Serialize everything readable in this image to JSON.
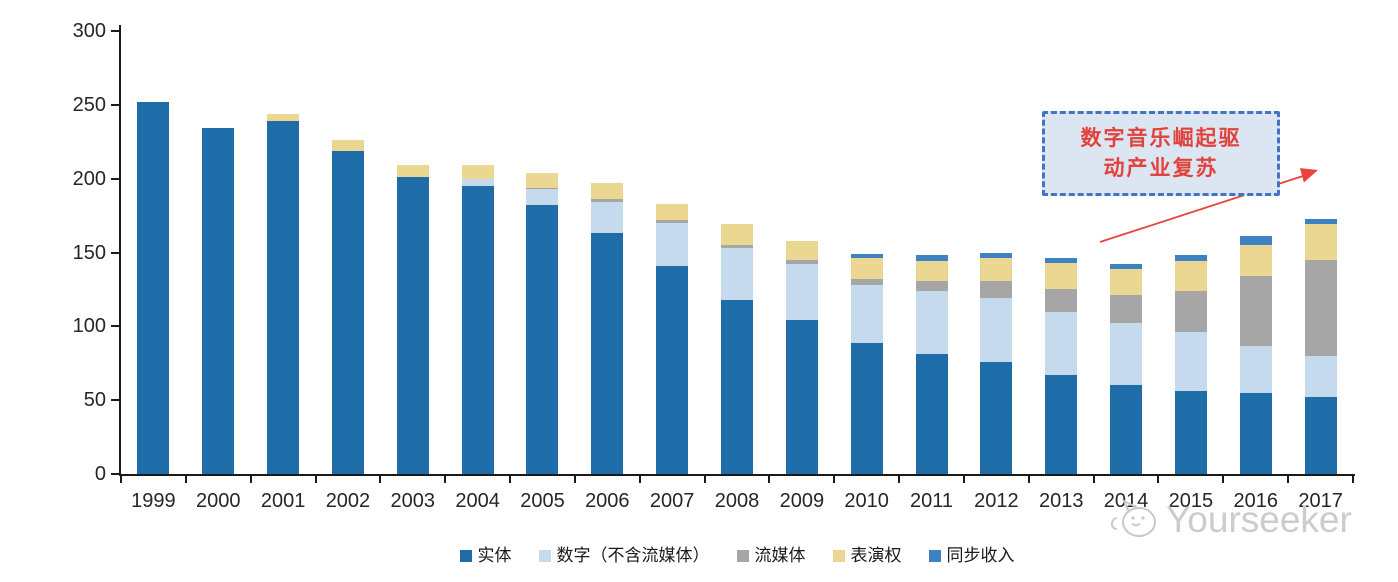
{
  "chart_data": {
    "type": "bar",
    "stacked": true,
    "title": "",
    "x": [
      "1999",
      "2000",
      "2001",
      "2002",
      "2003",
      "2004",
      "2005",
      "2006",
      "2007",
      "2008",
      "2009",
      "2010",
      "2011",
      "2012",
      "2013",
      "2014",
      "2015",
      "2016",
      "2017"
    ],
    "series": [
      {
        "name": "实体",
        "color": "#1e6ca8",
        "values": [
          252,
          234,
          239,
          219,
          201,
          195,
          182,
          163,
          141,
          118,
          104,
          89,
          81,
          76,
          67,
          60,
          56,
          55,
          52
        ]
      },
      {
        "name": "数字（不含流媒体）",
        "color": "#c6daee",
        "values": [
          0,
          0,
          0,
          0,
          0,
          5,
          11,
          21,
          29,
          35,
          38,
          39,
          43,
          43,
          43,
          42,
          40,
          32,
          28
        ]
      },
      {
        "name": "流媒体",
        "color": "#a6a6a6",
        "values": [
          0,
          0,
          0,
          0,
          0,
          0,
          1,
          2,
          2,
          2,
          3,
          4,
          7,
          12,
          15,
          19,
          28,
          47,
          65
        ]
      },
      {
        "name": "表演权",
        "color": "#ecd792",
        "values": [
          0,
          0,
          5,
          7,
          8,
          9,
          10,
          11,
          11,
          14,
          13,
          14,
          13,
          15,
          18,
          18,
          20,
          21,
          24
        ]
      },
      {
        "name": "同步收入",
        "color": "#3f82c4",
        "values": [
          0,
          0,
          0,
          0,
          0,
          0,
          0,
          0,
          0,
          0,
          0,
          3,
          4,
          4,
          3,
          3,
          4,
          6,
          4
        ]
      }
    ],
    "ylim": [
      0,
      300
    ],
    "yticks": [
      0,
      50,
      100,
      150,
      200,
      250,
      300
    ],
    "grid": false,
    "legend_position": "bottom"
  },
  "annotation": {
    "lines": [
      "数字音乐崛起驱",
      "动产业复苏"
    ],
    "text_color": "#e2423c",
    "box_fill": "#dce6f3",
    "box_border": "#4472c4",
    "arrow_color": "#e8433d"
  },
  "watermark": {
    "text": "Yourseeker",
    "logo": "yourseeker-cat-logo",
    "color": "#cccccc"
  },
  "axis": {
    "line_color": "#1a1a1a",
    "label_color": "#262626"
  }
}
